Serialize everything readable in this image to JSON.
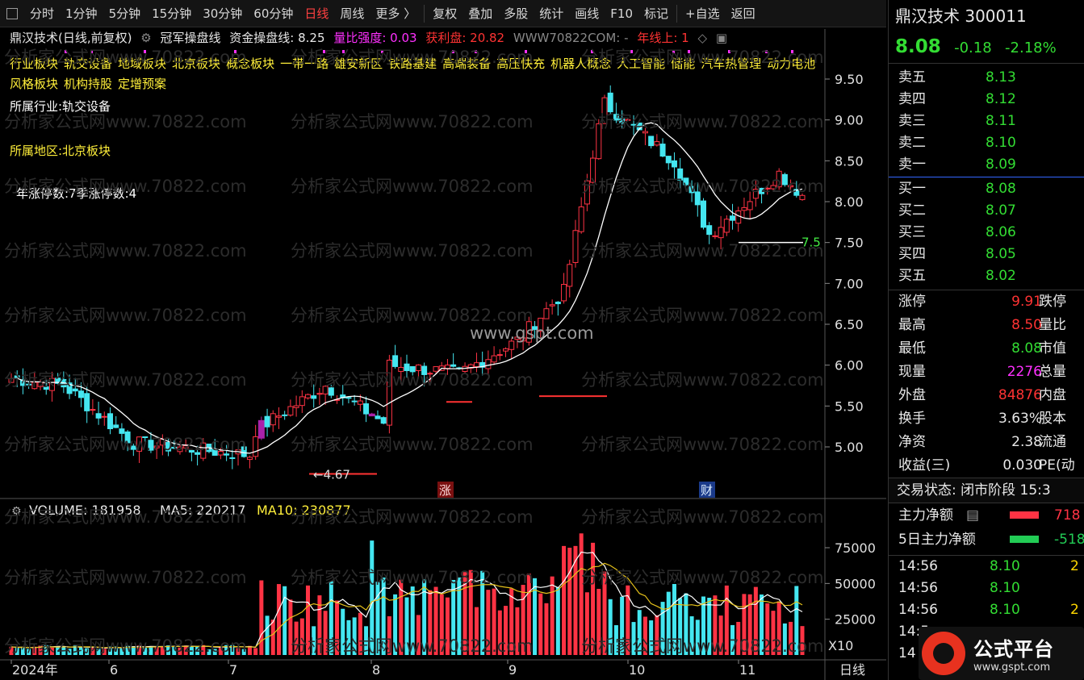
{
  "toolbar": {
    "items": [
      "分时",
      "1分钟",
      "5分钟",
      "15分钟",
      "30分钟",
      "60分钟",
      "日线",
      "周线",
      "更多 〉",
      "复权",
      "叠加",
      "多股",
      "统计",
      "画线",
      "F10",
      "标记",
      "+自选",
      "返回"
    ],
    "active": "日线"
  },
  "info": {
    "title": "鼎汉技术(日线,前复权)",
    "indicator": "冠军操盘线",
    "fund_label": "资金操盘线: 8.25",
    "vol_ratio": "量比强度: 0.03",
    "profit": "获利盘: 20.82",
    "site": "WWW70822COM: -",
    "year_line": "年线上: 1"
  },
  "concepts_line1": [
    "行业板块",
    "轨交设备",
    "地域板块",
    "北京板块",
    "概念板块",
    "一带一路",
    "雄安新区",
    "铁路基建",
    "高端装备",
    "高压快充",
    "机器人概念",
    "人工智能",
    "储能",
    "汽车热管理",
    "动力电池"
  ],
  "concepts_line2": [
    "风格板块",
    "机构持股",
    "定增预案"
  ],
  "industry": "所属行业:轨交设备",
  "region": "所属地区:北京板块",
  "limit_stats": "年涨停数:7季涨停数:4",
  "price_axis": [
    "9.50",
    "9.00",
    "8.50",
    "8.00",
    "7.50",
    "7.00",
    "6.50",
    "6.00",
    "5.50",
    "5.00"
  ],
  "annotations": {
    "low": "4.67",
    "support": "7.5",
    "zhang": "涨",
    "cai": "财",
    "watermark_center": "www.gspt.com"
  },
  "volume_header": {
    "volume": "VOLUME: 181958",
    "ma5": "MA5: 220217",
    "ma10": "MA10: 230877"
  },
  "volume_axis": [
    "75000",
    "50000",
    "25000"
  ],
  "volume_unit": "X10",
  "x_axis": [
    "2024年",
    "6",
    "7",
    "8",
    "9",
    "10",
    "11"
  ],
  "x_period": "日线",
  "watermark": "分析家公式网www.70822.com",
  "stock": {
    "name": "鼎汉技术",
    "code": "300011",
    "price": "8.08",
    "change": "-0.18",
    "change_pct": "-2.18%"
  },
  "orderbook": {
    "sells": [
      {
        "label": "卖五",
        "price": "8.13"
      },
      {
        "label": "卖四",
        "price": "8.12"
      },
      {
        "label": "卖三",
        "price": "8.11"
      },
      {
        "label": "卖二",
        "price": "8.10"
      },
      {
        "label": "卖一",
        "price": "8.09"
      }
    ],
    "buys": [
      {
        "label": "买一",
        "price": "8.08"
      },
      {
        "label": "买二",
        "price": "8.07"
      },
      {
        "label": "买三",
        "price": "8.06"
      },
      {
        "label": "买四",
        "price": "8.05"
      },
      {
        "label": "买五",
        "price": "8.02"
      }
    ]
  },
  "stats": [
    {
      "l1": "涨停",
      "v1": "9.91",
      "c": "#ff3333",
      "l2": "跌停"
    },
    {
      "l1": "最高",
      "v1": "8.50",
      "c": "#ff3333",
      "l2": "量比"
    },
    {
      "l1": "最低",
      "v1": "8.08",
      "c": "#33dd33",
      "l2": "市值"
    },
    {
      "l1": "现量",
      "v1": "2276",
      "c": "#ff30ff",
      "l2": "总量"
    },
    {
      "l1": "外盘",
      "v1": "84876",
      "c": "#ff3333",
      "l2": "内盘"
    },
    {
      "l1": "换手",
      "v1": "3.63%",
      "c": "#e8e8e8",
      "l2": "股本"
    },
    {
      "l1": "净资",
      "v1": "2.38",
      "c": "#e8e8e8",
      "l2": "流通"
    },
    {
      "l1": "收益(三)",
      "v1": "0.030",
      "c": "#e8e8e8",
      "l2": "PE(动"
    }
  ],
  "status": "交易状态: 闭市阶段 15:3",
  "flow": [
    {
      "label": "主力净额",
      "value": "718",
      "color": "#ff3344"
    },
    {
      "label": "5日主力净额",
      "value": "-518",
      "color": "#22cc55"
    }
  ],
  "ticks": [
    {
      "time": "14:56",
      "price": "8.10",
      "qty": "2"
    },
    {
      "time": "14:56",
      "price": "8.10",
      "qty": ""
    },
    {
      "time": "14:56",
      "price": "8.10",
      "qty": "2"
    },
    {
      "time": "14:5",
      "price": "",
      "qty": ""
    },
    {
      "time": "14",
      "price": "",
      "qty": ""
    }
  ],
  "logo": {
    "name": "公式平台",
    "url": "www.gspt.com"
  },
  "colors": {
    "up": "#ff3344",
    "down": "#44e6f0",
    "ma": "#ffffff",
    "ma10": "#e6c21a",
    "spike": "#aa22aa"
  }
}
